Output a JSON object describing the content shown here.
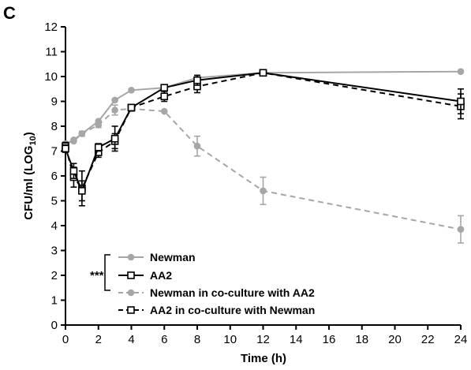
{
  "panel_label": "C",
  "chart_data": {
    "type": "line",
    "xlabel": "Time (h)",
    "ylabel_main": "CFU/ml (LOG",
    "ylabel_sub": "10",
    "ylabel_close": ")",
    "xlim": [
      0,
      24
    ],
    "ylim": [
      0,
      12
    ],
    "xticks": [
      0,
      2,
      4,
      6,
      8,
      10,
      12,
      14,
      16,
      18,
      20,
      22,
      24
    ],
    "yticks": [
      0,
      1,
      2,
      3,
      4,
      5,
      6,
      7,
      8,
      9,
      10,
      11,
      12
    ],
    "grid": false,
    "legend_position": "bottom-left",
    "significance_label": "***",
    "series": [
      {
        "name": "Newman",
        "color": "#a6a6a6",
        "line_style": "solid",
        "marker": "circle",
        "x": [
          0,
          0.5,
          1,
          2,
          3,
          4,
          6,
          8,
          12,
          24
        ],
        "y": [
          7.3,
          7.45,
          7.7,
          8.2,
          9.05,
          9.45,
          9.55,
          9.95,
          10.15,
          10.2
        ],
        "err": [
          0,
          0,
          0,
          0,
          0,
          0,
          0,
          0,
          0,
          0
        ]
      },
      {
        "name": "AA2",
        "color": "#000000",
        "line_style": "solid",
        "marker": "square",
        "x": [
          0,
          0.5,
          1,
          2,
          3,
          4,
          6,
          8,
          12,
          24
        ],
        "y": [
          7.1,
          6.2,
          5.4,
          7.15,
          7.5,
          8.75,
          9.55,
          9.85,
          10.15,
          9.0
        ],
        "err": [
          0.15,
          0.3,
          0.4,
          0.15,
          0.5,
          0.1,
          0.1,
          0.2,
          0.1,
          0.5
        ]
      },
      {
        "name": "Newman in co-culture with AA2",
        "color": "#a6a6a6",
        "line_style": "dashed",
        "marker": "circle",
        "x": [
          0,
          0.5,
          1,
          2,
          3,
          4,
          6,
          8,
          12,
          24
        ],
        "y": [
          7.3,
          7.4,
          7.7,
          8.05,
          8.65,
          8.7,
          8.6,
          7.2,
          5.4,
          3.85
        ],
        "err": [
          0,
          0,
          0.1,
          0.1,
          0.2,
          0.1,
          0,
          0.4,
          0.55,
          0.55
        ]
      },
      {
        "name": "AA2 in co-culture with Newman",
        "color": "#000000",
        "line_style": "dashed",
        "marker": "square",
        "x": [
          0,
          0.5,
          1,
          2,
          3,
          4,
          6,
          8,
          12,
          24
        ],
        "y": [
          7.2,
          5.95,
          5.5,
          6.95,
          7.4,
          8.75,
          9.2,
          9.6,
          10.15,
          8.8
        ],
        "err": [
          0.15,
          0.4,
          0.7,
          0.2,
          0.3,
          0.1,
          0.2,
          0.25,
          0.1,
          0.5
        ]
      }
    ]
  }
}
